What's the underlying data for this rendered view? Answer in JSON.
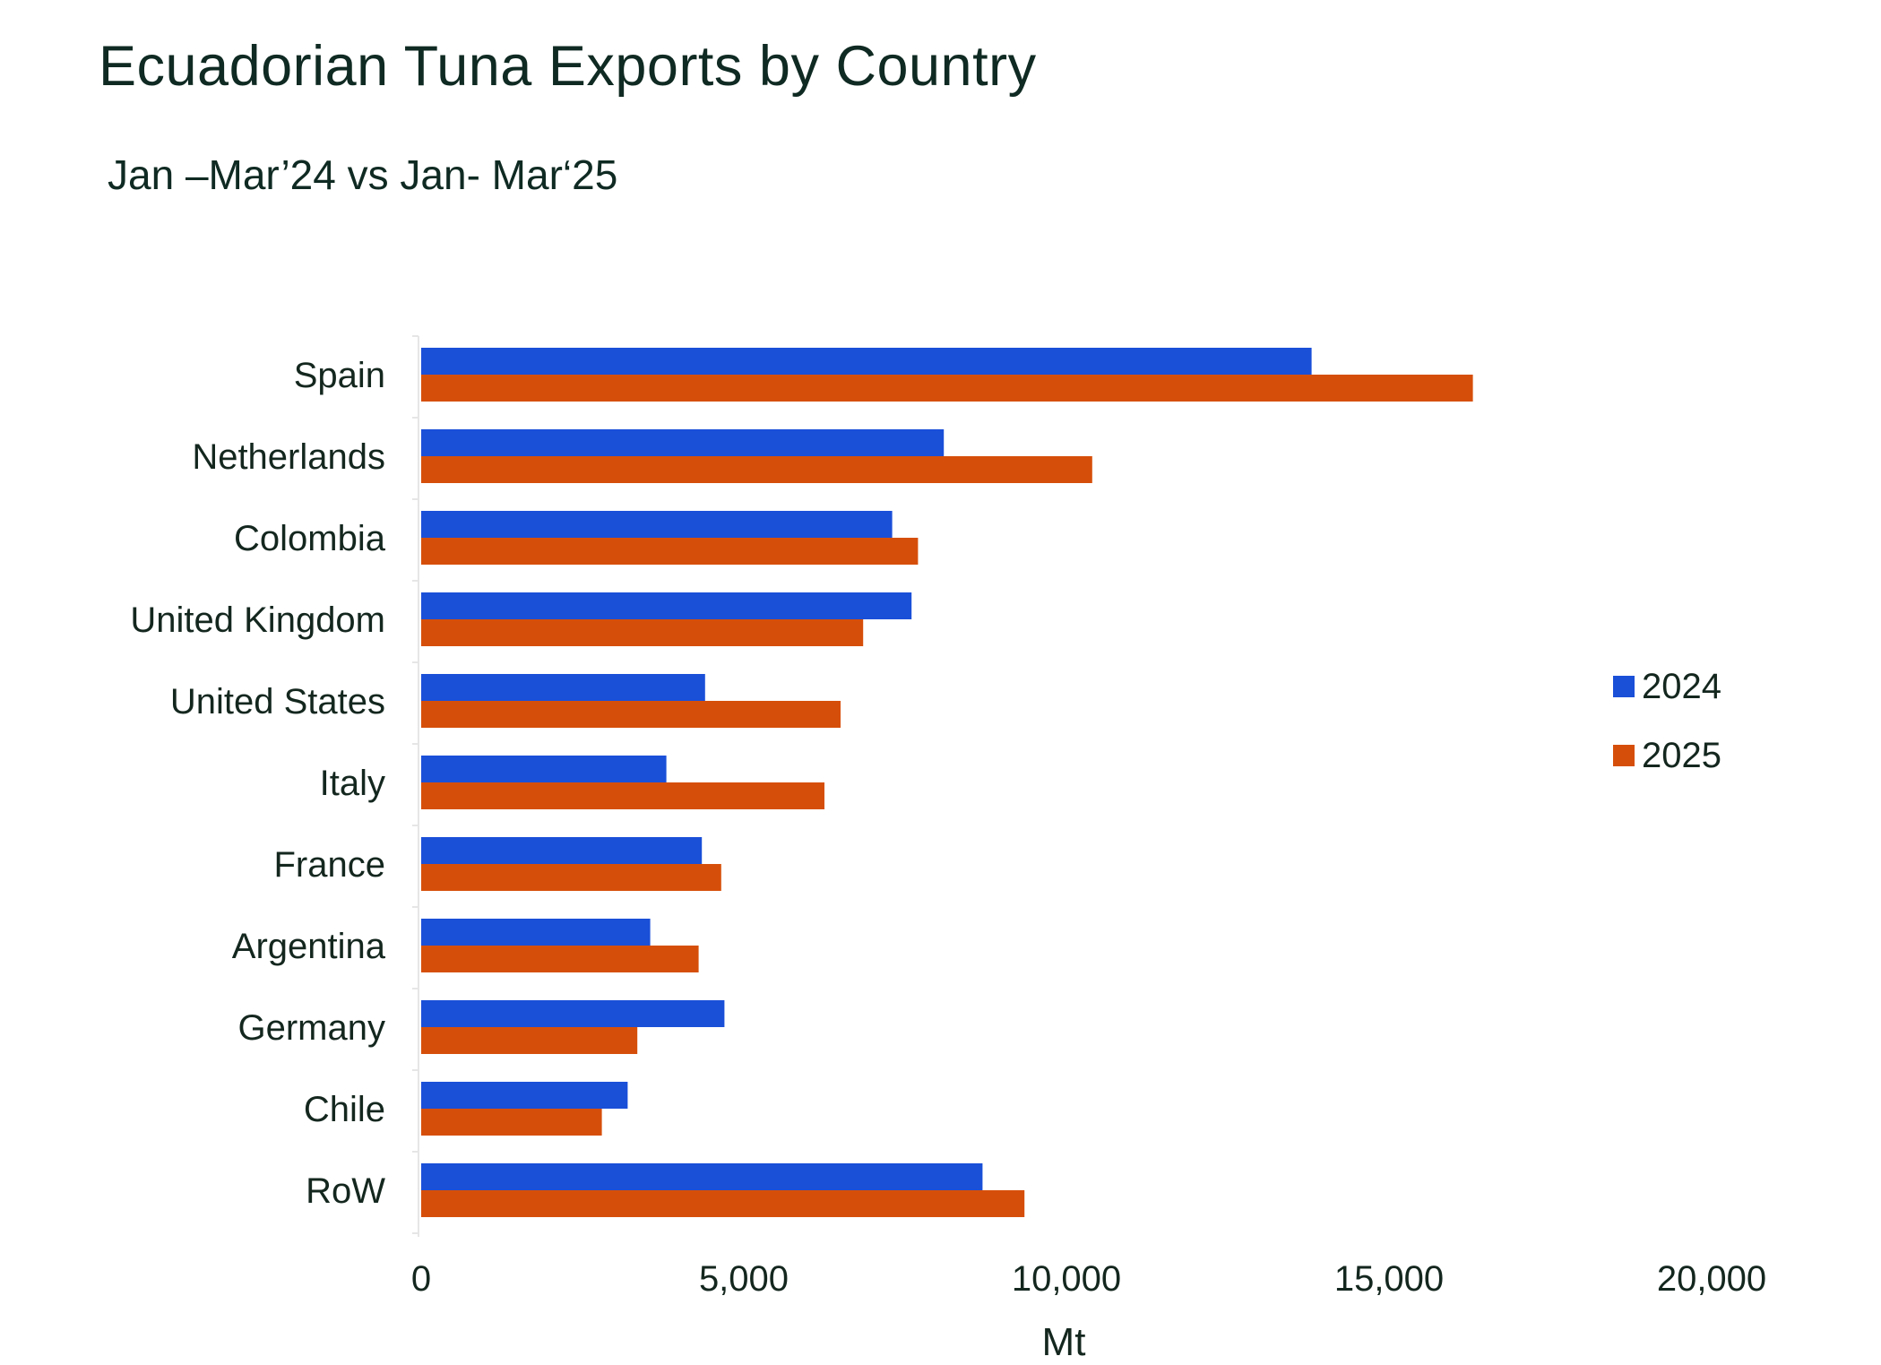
{
  "title": "Ecuadorian Tuna Exports by Country",
  "subtitle": "Jan –Mar’24 vs Jan- Mar‘25",
  "chart_data": {
    "type": "bar",
    "orientation": "horizontal",
    "categories": [
      "Spain",
      "Netherlands",
      "Colombia",
      "United Kingdom",
      "United States",
      "Italy",
      "France",
      "Argentina",
      "Germany",
      "Chile",
      "RoW"
    ],
    "series": [
      {
        "name": "2024",
        "color": "#1a4fd8",
        "values": [
          13800,
          8100,
          7300,
          7600,
          4400,
          3800,
          4350,
          3550,
          4700,
          3200,
          8700
        ]
      },
      {
        "name": "2025",
        "color": "#d64f0a",
        "values": [
          16300,
          10400,
          7700,
          6850,
          6500,
          6250,
          4650,
          4300,
          3350,
          2800,
          9350
        ]
      }
    ],
    "xlabel": "Mt",
    "ylabel": "",
    "xlim": [
      0,
      20000
    ],
    "xticks": [
      "0",
      "5,000",
      "10,000",
      "15,000",
      "20,000"
    ],
    "grid": false,
    "legend": "right"
  }
}
